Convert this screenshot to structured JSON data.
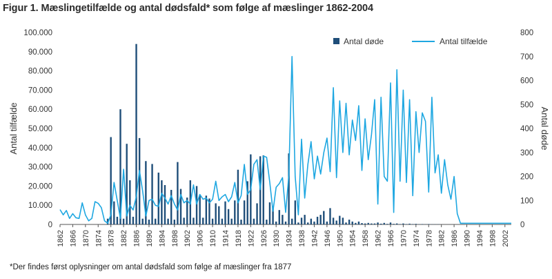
{
  "title": "Figur 1. Mæslingetilfælde og antal dødsfald* som følge af mæslinger 1862-2004",
  "footnote": "*Der findes først oplysninger om antal dødsfald som følge af mæslinger fra 1877",
  "colors": {
    "deaths": "#1f4e79",
    "cases": "#1ea7e1",
    "axis": "#555555"
  },
  "chart_data": {
    "type": "bar",
    "title": "Figur 1. Mæslingetilfælde og antal dødsfald* som følge af mæslinger 1862-2004",
    "xlabel": "",
    "ylabel": "Antal tilfælde",
    "y2label": "Antal døde",
    "ylim": [
      0,
      100000
    ],
    "y2lim": [
      0,
      800
    ],
    "x_range": [
      1862,
      2004
    ],
    "y_ticks": [
      "0",
      "10.000",
      "20.000",
      "30.000",
      "40.000",
      "50.000",
      "60.000",
      "70.000",
      "80.000",
      "90.000",
      "100.000"
    ],
    "y2_ticks": [
      "0",
      "100",
      "200",
      "300",
      "400",
      "500",
      "600",
      "700",
      "800"
    ],
    "x_ticks": [
      "1862",
      "1866",
      "1870",
      "1874",
      "1878",
      "1882",
      "1886",
      "1890",
      "1894",
      "1898",
      "1902",
      "1906",
      "1910",
      "1914",
      "1918",
      "1922",
      "1926",
      "1930",
      "1934",
      "1938",
      "1942",
      "1946",
      "1950",
      "1954",
      "1958",
      "1962",
      "1966",
      "1970",
      "1974",
      "1978",
      "1982",
      "1986",
      "1990",
      "1994",
      "1998",
      "2002"
    ],
    "legend_position": "top-right",
    "series": [
      {
        "name": "Antal døde",
        "type": "bar",
        "axis": "left",
        "x": [
          1877,
          1878,
          1879,
          1880,
          1881,
          1882,
          1883,
          1884,
          1885,
          1886,
          1887,
          1888,
          1889,
          1890,
          1891,
          1892,
          1893,
          1894,
          1895,
          1896,
          1897,
          1898,
          1899,
          1900,
          1901,
          1902,
          1903,
          1904,
          1905,
          1906,
          1907,
          1908,
          1909,
          1910,
          1911,
          1912,
          1913,
          1914,
          1915,
          1916,
          1917,
          1918,
          1919,
          1920,
          1921,
          1922,
          1923,
          1924,
          1925,
          1926,
          1927,
          1928,
          1929,
          1930,
          1931,
          1932,
          1933,
          1934,
          1935,
          1936,
          1937,
          1938,
          1939,
          1940,
          1941,
          1942,
          1943,
          1944,
          1945,
          1946,
          1947,
          1948,
          1949,
          1950,
          1951,
          1952,
          1953,
          1954,
          1955,
          1956,
          1957,
          1958,
          1959,
          1960,
          1961,
          1962,
          1963,
          1964,
          1965,
          1966,
          1967,
          1968,
          1969,
          1970,
          1971,
          1972,
          1973,
          1974,
          1975,
          1976,
          1977,
          1978,
          1979,
          1980,
          1981
        ],
        "values": [
          3000,
          45500,
          12000,
          4000,
          60000,
          3000,
          42000,
          23000,
          4000,
          94000,
          45000,
          3000,
          33000,
          2500,
          31500,
          3000,
          27000,
          23000,
          20500,
          3000,
          18000,
          2500,
          32500,
          18500,
          3500,
          14000,
          23000,
          3500,
          20000,
          15500,
          3500,
          15000,
          13500,
          3000,
          11000,
          9500,
          3000,
          12000,
          8000,
          3000,
          12500,
          28500,
          2500,
          12500,
          22500,
          36500,
          3000,
          11000,
          35500,
          36000,
          2500,
          11500,
          9500,
          1500,
          7500,
          5000,
          1500,
          37000,
          3000,
          12500,
          1000,
          3500,
          5000,
          1000,
          3000,
          1500,
          4000,
          5000,
          7000,
          1500,
          8500,
          3500,
          2000,
          4500,
          3500,
          1000,
          2500,
          1500,
          800,
          1500,
          700,
          500,
          800,
          500,
          500,
          1000,
          400,
          800,
          300,
          1000,
          300,
          500,
          200,
          500,
          200,
          400,
          200,
          300,
          100,
          200,
          100,
          200,
          100,
          100,
          100
        ]
      },
      {
        "name": "Antal tilfælde",
        "type": "line",
        "axis": "right",
        "x": [
          1862,
          1863,
          1864,
          1865,
          1866,
          1867,
          1868,
          1869,
          1870,
          1871,
          1872,
          1873,
          1874,
          1875,
          1876,
          1877,
          1878,
          1879,
          1880,
          1881,
          1882,
          1883,
          1884,
          1885,
          1886,
          1887,
          1888,
          1889,
          1890,
          1891,
          1892,
          1893,
          1894,
          1895,
          1896,
          1897,
          1898,
          1899,
          1900,
          1901,
          1902,
          1903,
          1904,
          1905,
          1906,
          1907,
          1908,
          1909,
          1910,
          1911,
          1912,
          1913,
          1914,
          1915,
          1916,
          1917,
          1918,
          1919,
          1920,
          1921,
          1922,
          1923,
          1924,
          1925,
          1926,
          1927,
          1928,
          1929,
          1930,
          1931,
          1932,
          1933,
          1934,
          1935,
          1936,
          1937,
          1938,
          1939,
          1940,
          1941,
          1942,
          1943,
          1944,
          1945,
          1946,
          1947,
          1948,
          1949,
          1950,
          1951,
          1952,
          1953,
          1954,
          1955,
          1956,
          1957,
          1958,
          1959,
          1960,
          1961,
          1962,
          1963,
          1964,
          1965,
          1966,
          1967,
          1968,
          1969,
          1970,
          1971,
          1972,
          1973,
          1974,
          1975,
          1976,
          1977,
          1978,
          1979,
          1980,
          1981,
          1982,
          1983,
          1984,
          1985,
          1986,
          1987,
          1988,
          1989,
          1990,
          1991,
          1992,
          1993,
          1994,
          1995,
          1996,
          1997,
          1998,
          1999,
          2000,
          2001,
          2002,
          2003,
          2004
        ],
        "values": [
          62,
          40,
          58,
          25,
          45,
          28,
          25,
          90,
          40,
          15,
          25,
          95,
          88,
          70,
          15,
          5,
          40,
          175,
          100,
          25,
          230,
          35,
          80,
          60,
          115,
          225,
          140,
          35,
          100,
          105,
          80,
          75,
          130,
          110,
          85,
          120,
          85,
          60,
          125,
          90,
          100,
          85,
          165,
          85,
          125,
          105,
          110,
          90,
          105,
          180,
          100,
          115,
          125,
          95,
          115,
          175,
          90,
          120,
          250,
          125,
          145,
          250,
          270,
          145,
          285,
          280,
          175,
          55,
          155,
          170,
          195,
          50,
          205,
          700,
          200,
          40,
          355,
          110,
          250,
          345,
          190,
          285,
          210,
          300,
          360,
          220,
          570,
          195,
          515,
          300,
          505,
          290,
          435,
          350,
          495,
          225,
          440,
          270,
          375,
          520,
          85,
          530,
          200,
          180,
          590,
          50,
          645,
          180,
          560,
          175,
          520,
          120,
          470,
          300,
          465,
          430,
          135,
          530,
          215,
          290,
          130,
          270,
          165,
          105,
          200,
          45,
          5,
          5,
          5,
          5,
          5,
          5,
          5,
          5,
          5,
          5,
          5,
          5,
          5,
          5,
          5,
          5,
          5
        ]
      }
    ]
  }
}
